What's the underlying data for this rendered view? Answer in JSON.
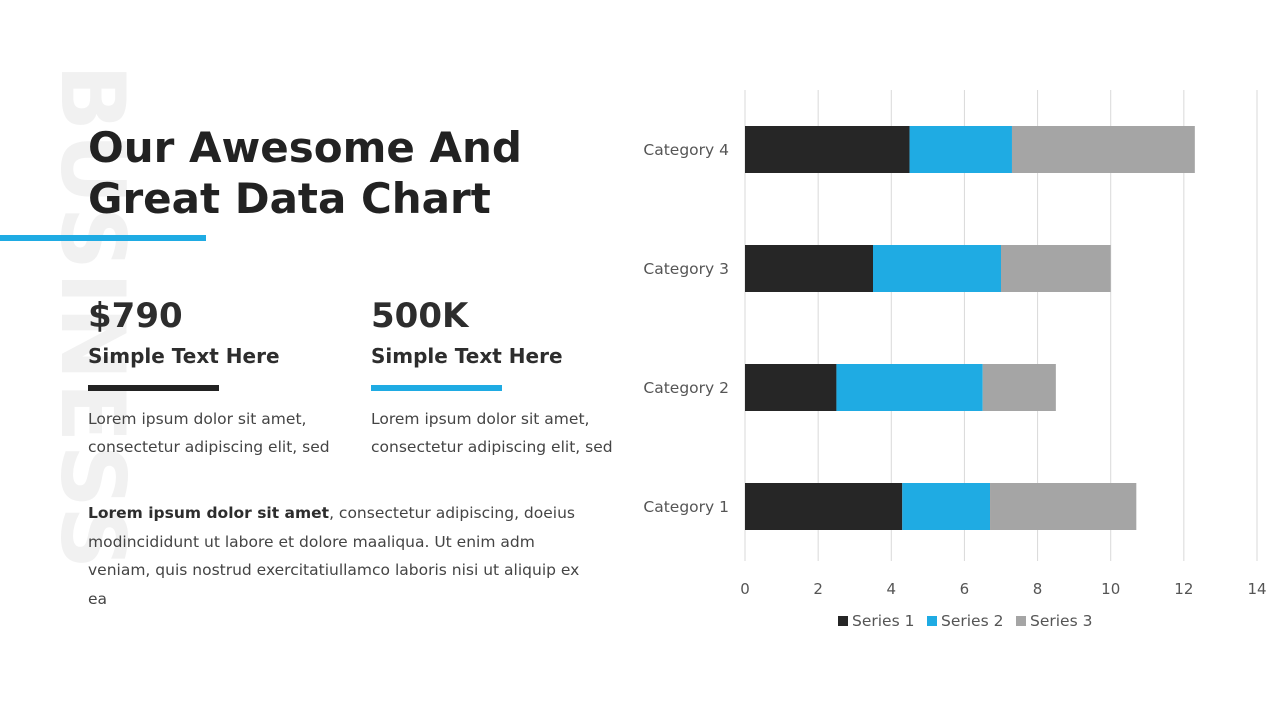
{
  "watermark": "BUSINESS",
  "title": {
    "line1": "Our Awesome And",
    "line2": "Great Data Chart"
  },
  "stats": [
    {
      "value": "$790",
      "label": "Simple Text Here",
      "bar_color": "#222222",
      "desc_line1": "Lorem ipsum dolor sit amet,",
      "desc_line2": "consectetur adipiscing elit, sed"
    },
    {
      "value": "500K",
      "label": "Simple Text Here",
      "bar_color": "#1fabe3",
      "desc_line1": "Lorem ipsum dolor sit amet,",
      "desc_line2": "consectetur adipiscing elit, sed"
    }
  ],
  "paragraph": {
    "bold": "Lorem ipsum dolor sit amet",
    "rest": ", consectetur adipiscing, doeius modincididunt ut labore et dolore maaliqua. Ut enim adm veniam, quis nostrud exercitatiullamco laboris nisi ut aliquip ex ea"
  },
  "colors": {
    "accent": "#1fabe3",
    "dark": "#262626",
    "gray": "#a5a5a5"
  },
  "chart_data": {
    "type": "bar",
    "orientation": "horizontal",
    "stacked": true,
    "categories": [
      "Category 1",
      "Category 2",
      "Category 3",
      "Category 4"
    ],
    "series": [
      {
        "name": "Series 1",
        "color": "#262626",
        "values": [
          4.3,
          2.5,
          3.5,
          4.5
        ]
      },
      {
        "name": "Series 2",
        "color": "#1fabe3",
        "values": [
          2.4,
          4.0,
          3.5,
          2.8
        ]
      },
      {
        "name": "Series 3",
        "color": "#a5a5a5",
        "values": [
          4.0,
          2.0,
          3.0,
          5.0
        ]
      }
    ],
    "xlim": [
      0,
      14
    ],
    "xticks": [
      "0",
      "2",
      "4",
      "6",
      "8",
      "10",
      "12",
      "14"
    ],
    "grid": true,
    "legend": "bottom",
    "title": "",
    "xlabel": "",
    "ylabel": ""
  }
}
